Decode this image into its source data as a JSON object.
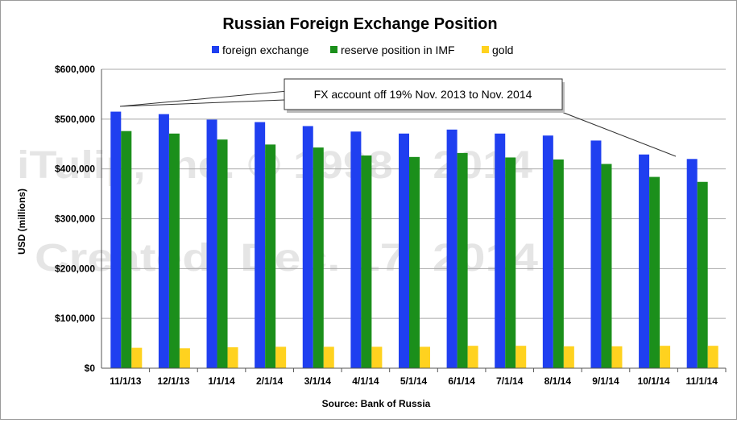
{
  "chart_data": {
    "type": "bar",
    "title": "Russian Foreign Exchange Position",
    "categories": [
      "11/1/13",
      "12/1/13",
      "1/1/14",
      "2/1/14",
      "3/1/14",
      "4/1/14",
      "5/1/14",
      "6/1/14",
      "7/1/14",
      "8/1/14",
      "9/1/14",
      "10/1/14",
      "11/1/14"
    ],
    "series": [
      {
        "name": "foreign exchange",
        "color": "#1f3ff0",
        "values": [
          515000,
          510000,
          499000,
          494000,
          486000,
          475000,
          471000,
          479000,
          471000,
          467000,
          457000,
          429000,
          420000
        ]
      },
      {
        "name": "reserve position in IMF",
        "color": "#1b8f1b",
        "values": [
          476000,
          471000,
          459000,
          449000,
          443000,
          427000,
          424000,
          432000,
          423000,
          419000,
          410000,
          384000,
          374000
        ]
      },
      {
        "name": "gold",
        "color": "#ffd21f",
        "values": [
          41000,
          40000,
          42000,
          43000,
          43000,
          43000,
          43000,
          45000,
          45000,
          44000,
          44000,
          45000,
          45000
        ]
      }
    ],
    "ylabel": "USD (millions)",
    "ylim": [
      0,
      600000
    ],
    "yticks": [
      0,
      100000,
      200000,
      300000,
      400000,
      500000,
      600000
    ],
    "ytick_labels": [
      "$0",
      "$100,000",
      "$200,000",
      "$300,000",
      "$400,000",
      "$500,000",
      "$600,000"
    ],
    "grid": true,
    "legend_position": "top",
    "source": "Source: Bank of Russia",
    "annotation": "FX account off 19% Nov. 2013 to Nov. 2014",
    "watermark": [
      "iTulip, Inc. © 1998 - 2014",
      "Created: Dec. 17, 2014"
    ]
  }
}
